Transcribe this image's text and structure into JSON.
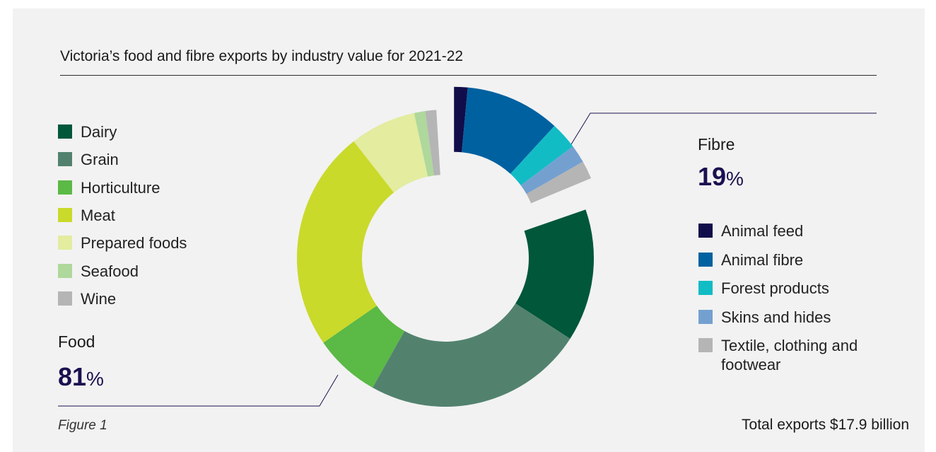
{
  "title": "Victoria’s food and fibre exports by industry value for 2021-22",
  "figure_label": "Figure 1",
  "total": "Total exports $17.9 billion",
  "food": {
    "label": "Food",
    "pct_num": "81",
    "pct_sign": "%"
  },
  "fibre": {
    "label": "Fibre",
    "pct_num": "19",
    "pct_sign": "%"
  },
  "food_legend": [
    {
      "label": "Dairy",
      "color": "#00573a"
    },
    {
      "label": "Grain",
      "color": "#52826e"
    },
    {
      "label": "Horticulture",
      "color": "#5bb946"
    },
    {
      "label": "Meat",
      "color": "#c9da2b"
    },
    {
      "label": "Prepared foods",
      "color": "#e3ec9f"
    },
    {
      "label": "Seafood",
      "color": "#afd89c"
    },
    {
      "label": "Wine",
      "color": "#b5b5b5"
    }
  ],
  "fibre_legend": [
    {
      "label": "Animal feed",
      "color": "#110d4a"
    },
    {
      "label": "Animal fibre",
      "color": "#0061a0"
    },
    {
      "label": "Forest products",
      "color": "#12bcc5"
    },
    {
      "label": "Skins and hides",
      "color": "#74a0d0"
    },
    {
      "label": "Textile, clothing and footwear",
      "color": "#b5b5b5"
    }
  ],
  "chart_data": {
    "type": "pie",
    "title": "Victoria’s food and fibre exports by industry value for 2021-22",
    "groups": [
      {
        "name": "Fibre",
        "percent": 19,
        "categories": [
          "Animal feed",
          "Animal fibre",
          "Forest products",
          "Skins and hides",
          "Textile, clothing and footwear"
        ]
      },
      {
        "name": "Food",
        "percent": 81,
        "categories": [
          "Dairy",
          "Grain",
          "Horticulture",
          "Meat",
          "Prepared foods",
          "Seafood",
          "Wine"
        ]
      }
    ],
    "categories": [
      "Animal feed",
      "Animal fibre",
      "Forest products",
      "Skins and hides",
      "Textile, clothing and footwear",
      "Dairy",
      "Grain",
      "Horticulture",
      "Meat",
      "Prepared foods",
      "Seafood",
      "Wine"
    ],
    "values": [
      1.5,
      10.5,
      3,
      2,
      2,
      15,
      25,
      7.5,
      25,
      7.5,
      1.25,
      1.25
    ],
    "colors": [
      "#110d4a",
      "#0061a0",
      "#12bcc5",
      "#74a0d0",
      "#b5b5b5",
      "#00573a",
      "#52826e",
      "#5bb946",
      "#c9da2b",
      "#e3ec9f",
      "#afd89c",
      "#b5b5b5"
    ],
    "legend": [
      "left",
      "right"
    ]
  }
}
